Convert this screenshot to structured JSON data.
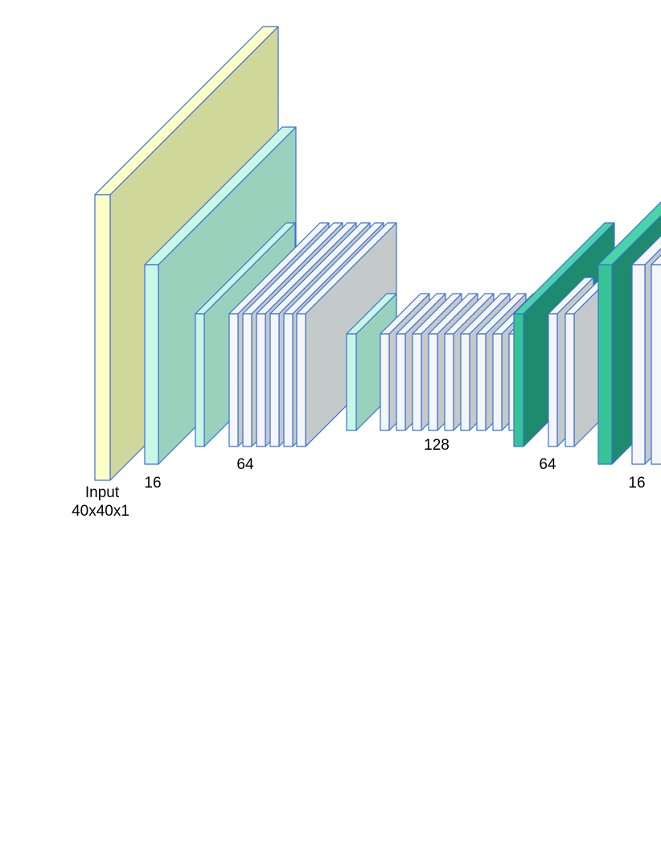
{
  "labels": {
    "input": "Input",
    "input_shape": "40x40x1",
    "block1": "16",
    "block2": "64",
    "block3": "128",
    "block4": "64",
    "block5": "16"
  }
}
